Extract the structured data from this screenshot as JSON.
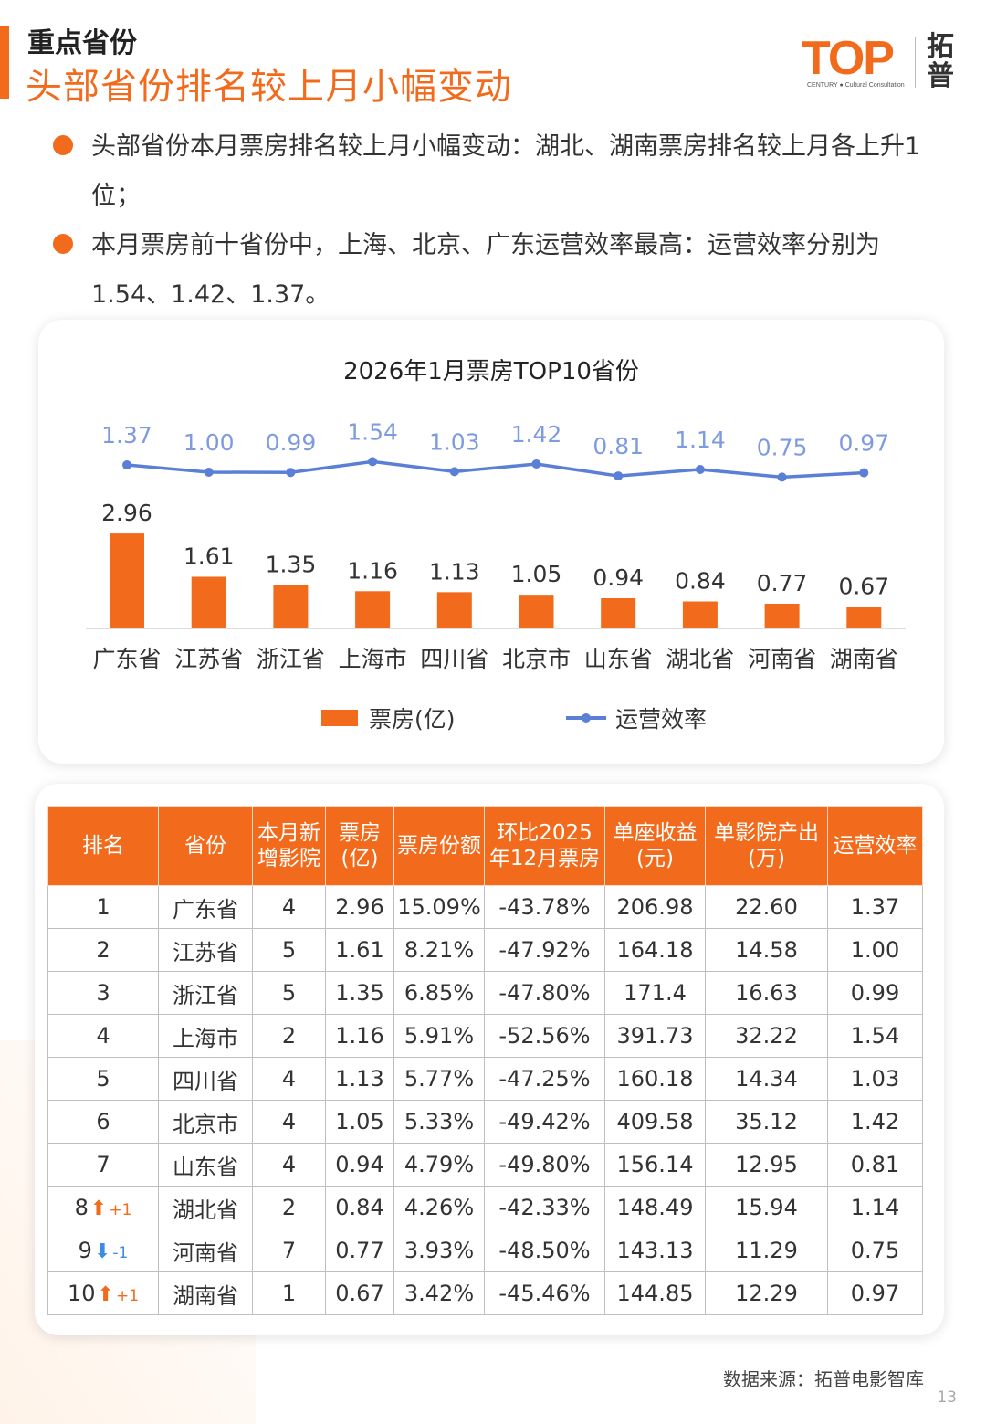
{
  "header": {
    "section": "重点省份",
    "headline": "头部省份排名较上月小幅变动"
  },
  "logo": {
    "word": "TOP",
    "sub": "CENTURY ● Cultural Consultation",
    "cn": "拓普"
  },
  "bullets": [
    "头部省份本月票房排名较上月小幅变动：湖北、湖南票房排名较上月各上升1位；",
    "本月票房前十省份中，上海、北京、广东运营效率最高：运营效率分别为1.54、1.42、1.37。"
  ],
  "colors": {
    "accent": "#f26a1b",
    "line": "#5b7fd6",
    "down": "#3c8de0"
  },
  "chart_data": {
    "type": "bar",
    "title": "2026年1月票房TOP10省份",
    "categories": [
      "广东省",
      "江苏省",
      "浙江省",
      "上海市",
      "四川省",
      "北京市",
      "山东省",
      "湖北省",
      "河南省",
      "湖南省"
    ],
    "series": [
      {
        "name": "票房(亿)",
        "type": "bar",
        "values": [
          2.96,
          1.61,
          1.35,
          1.16,
          1.13,
          1.05,
          0.94,
          0.84,
          0.77,
          0.67
        ]
      },
      {
        "name": "运营效率",
        "type": "line",
        "values": [
          1.37,
          1.0,
          0.99,
          1.54,
          1.03,
          1.42,
          0.81,
          1.14,
          0.75,
          0.97
        ]
      }
    ],
    "legend_position": "bottom",
    "grid": false
  },
  "table": {
    "headers": [
      "排名",
      "省份",
      "本月新增影院",
      "票房(亿)",
      "票房份额",
      "环比2025年12月票房",
      "单座收益(元)",
      "单影院产出(万)",
      "运营效率"
    ],
    "rows": [
      {
        "rank": "1",
        "arrow": "",
        "change": "",
        "cells": [
          "广东省",
          "4",
          "2.96",
          "15.09%",
          "-43.78%",
          "206.98",
          "22.60",
          "1.37"
        ]
      },
      {
        "rank": "2",
        "arrow": "",
        "change": "",
        "cells": [
          "江苏省",
          "5",
          "1.61",
          "8.21%",
          "-47.92%",
          "164.18",
          "14.58",
          "1.00"
        ]
      },
      {
        "rank": "3",
        "arrow": "",
        "change": "",
        "cells": [
          "浙江省",
          "5",
          "1.35",
          "6.85%",
          "-47.80%",
          "171.4",
          "16.63",
          "0.99"
        ]
      },
      {
        "rank": "4",
        "arrow": "",
        "change": "",
        "cells": [
          "上海市",
          "2",
          "1.16",
          "5.91%",
          "-52.56%",
          "391.73",
          "32.22",
          "1.54"
        ]
      },
      {
        "rank": "5",
        "arrow": "",
        "change": "",
        "cells": [
          "四川省",
          "4",
          "1.13",
          "5.77%",
          "-47.25%",
          "160.18",
          "14.34",
          "1.03"
        ]
      },
      {
        "rank": "6",
        "arrow": "",
        "change": "",
        "cells": [
          "北京市",
          "4",
          "1.05",
          "5.33%",
          "-49.42%",
          "409.58",
          "35.12",
          "1.42"
        ]
      },
      {
        "rank": "7",
        "arrow": "",
        "change": "",
        "cells": [
          "山东省",
          "4",
          "0.94",
          "4.79%",
          "-49.80%",
          "156.14",
          "12.95",
          "0.81"
        ]
      },
      {
        "rank": "8",
        "arrow": "up",
        "change": "+1",
        "cells": [
          "湖北省",
          "2",
          "0.84",
          "4.26%",
          "-42.33%",
          "148.49",
          "15.94",
          "1.14"
        ]
      },
      {
        "rank": "9",
        "arrow": "down",
        "change": "-1",
        "cells": [
          "河南省",
          "7",
          "0.77",
          "3.93%",
          "-48.50%",
          "143.13",
          "11.29",
          "0.75"
        ]
      },
      {
        "rank": "10",
        "arrow": "up",
        "change": "+1",
        "cells": [
          "湖南省",
          "1",
          "0.67",
          "3.42%",
          "-45.46%",
          "144.85",
          "12.29",
          "0.97"
        ]
      }
    ]
  },
  "footer": {
    "source": "数据来源：拓普电影智库",
    "page": "13"
  }
}
